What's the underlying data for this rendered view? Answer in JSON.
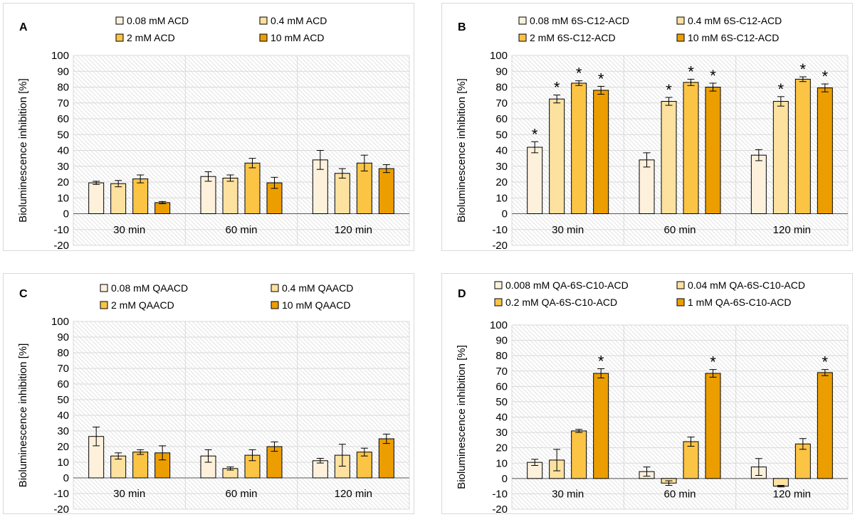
{
  "colors": {
    "series": [
      "#fdf1dc",
      "#fde19f",
      "#fbc445",
      "#ec9e00"
    ],
    "bar_stroke": "#000000",
    "grid": "#d9d9d9",
    "hatch": "#e3e3e3",
    "axis": "#595959"
  },
  "chart_data": [
    {
      "id": "A",
      "panel_label": "A",
      "type": "bar",
      "ylabel": "Bioluminescence inhibition [%]",
      "ylim": [
        -20,
        100
      ],
      "yticks": [
        100,
        90,
        80,
        70,
        60,
        50,
        40,
        30,
        20,
        10,
        0,
        -10,
        -20
      ],
      "categories": [
        "30 min",
        "60 min",
        "120 min"
      ],
      "legend_position": "top",
      "series": [
        {
          "name": "0.08 mM ACD",
          "values": [
            19.5,
            23.5,
            34
          ],
          "errors": [
            1,
            3,
            6
          ],
          "significant": [
            false,
            false,
            false
          ]
        },
        {
          "name": "0.4 mM ACD",
          "values": [
            19,
            22.5,
            25.5
          ],
          "errors": [
            2,
            2,
            3
          ],
          "significant": [
            false,
            false,
            false
          ]
        },
        {
          "name": "2 mM ACD",
          "values": [
            22,
            32,
            32
          ],
          "errors": [
            2.5,
            3,
            5
          ],
          "significant": [
            false,
            false,
            false
          ]
        },
        {
          "name": "10 mM ACD",
          "values": [
            7,
            19.5,
            28.5
          ],
          "errors": [
            0.7,
            3.5,
            2.5
          ],
          "significant": [
            false,
            false,
            false
          ]
        }
      ],
      "significance_marker": "*"
    },
    {
      "id": "B",
      "panel_label": "B",
      "type": "bar",
      "ylabel": "Bioluminescence inhibition [%]",
      "ylim": [
        -20,
        100
      ],
      "yticks": [
        100,
        90,
        80,
        70,
        60,
        50,
        40,
        30,
        20,
        10,
        0,
        -10,
        -20
      ],
      "categories": [
        "30 min",
        "60 min",
        "120 min"
      ],
      "legend_position": "top",
      "series": [
        {
          "name": "0.08 mM 6S-C12-ACD",
          "values": [
            42,
            34,
            37
          ],
          "errors": [
            3.5,
            4.5,
            3.5
          ],
          "significant": [
            true,
            false,
            false
          ]
        },
        {
          "name": "0.4 mM 6S-C12-ACD",
          "values": [
            72.5,
            71,
            71
          ],
          "errors": [
            2.5,
            2.5,
            3
          ],
          "significant": [
            true,
            true,
            true
          ]
        },
        {
          "name": "2 mM 6S-C12-ACD",
          "values": [
            82.5,
            83,
            85
          ],
          "errors": [
            1.5,
            2,
            1.5
          ],
          "significant": [
            true,
            true,
            true
          ]
        },
        {
          "name": "10 mM 6S-C12-ACD",
          "values": [
            78,
            80,
            79.5
          ],
          "errors": [
            2.5,
            2.5,
            2.5
          ],
          "significant": [
            true,
            true,
            true
          ]
        }
      ],
      "significance_marker": "*"
    },
    {
      "id": "C",
      "panel_label": "C",
      "type": "bar",
      "ylabel": "Bioluminescence inhibition [%]",
      "ylim": [
        -20,
        100
      ],
      "yticks": [
        100,
        90,
        80,
        70,
        60,
        50,
        40,
        30,
        20,
        10,
        0,
        -10,
        -20
      ],
      "categories": [
        "30 min",
        "60 min",
        "120 min"
      ],
      "legend_position": "top",
      "series": [
        {
          "name": "0.08 mM QAACD",
          "values": [
            26.5,
            14,
            11
          ],
          "errors": [
            6,
            4,
            1.5
          ],
          "significant": [
            false,
            false,
            false
          ]
        },
        {
          "name": "0.4 mM QAACD",
          "values": [
            14,
            6,
            14.5
          ],
          "errors": [
            2,
            1,
            7
          ],
          "significant": [
            false,
            false,
            false
          ]
        },
        {
          "name": "2 mM QAACD",
          "values": [
            16.5,
            14.5,
            16.5
          ],
          "errors": [
            1.5,
            3.5,
            2.5
          ],
          "significant": [
            false,
            false,
            false
          ]
        },
        {
          "name": "10 mM QAACD",
          "values": [
            16,
            20,
            25
          ],
          "errors": [
            4.5,
            3,
            3
          ],
          "significant": [
            false,
            false,
            false
          ]
        }
      ],
      "significance_marker": "*"
    },
    {
      "id": "D",
      "panel_label": "D",
      "type": "bar",
      "ylabel": "Bioluminescence inhibition [%]",
      "ylim": [
        -20,
        100
      ],
      "yticks": [
        100,
        90,
        80,
        70,
        60,
        50,
        40,
        30,
        20,
        10,
        0,
        -10,
        -20
      ],
      "categories": [
        "30 min",
        "60 min",
        "120 min"
      ],
      "legend_position": "top",
      "series": [
        {
          "name": "0.008 mM QA-6S-C10-ACD",
          "values": [
            10.5,
            4.5,
            7.5
          ],
          "errors": [
            2,
            3,
            5.5
          ],
          "significant": [
            false,
            false,
            false
          ]
        },
        {
          "name": "0.04 mM QA-6S-C10-ACD",
          "values": [
            12,
            -3,
            -5
          ],
          "errors": [
            7,
            1.5,
            0.5
          ],
          "significant": [
            false,
            false,
            false
          ]
        },
        {
          "name": "0.2 mM QA-6S-C10-ACD",
          "values": [
            31,
            24,
            22.5
          ],
          "errors": [
            1,
            3,
            3.5
          ],
          "significant": [
            false,
            false,
            false
          ]
        },
        {
          "name": "1 mM QA-6S-C10-ACD",
          "values": [
            68.5,
            68.5,
            69
          ],
          "errors": [
            3,
            2.5,
            2
          ],
          "significant": [
            true,
            true,
            true
          ]
        }
      ],
      "significance_marker": "*"
    }
  ]
}
